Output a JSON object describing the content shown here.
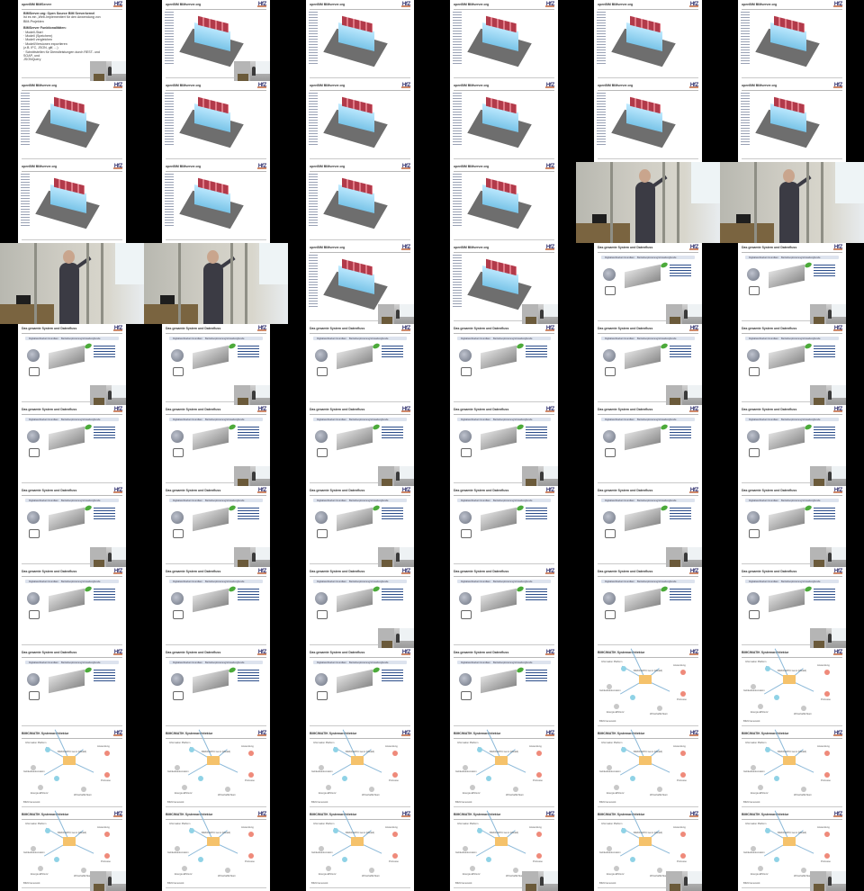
{
  "header": {
    "site": "openBIM BIMServer",
    "logo": "HfZ"
  },
  "headers": {
    "bimserver_org": "openBIM BIMserver.org",
    "gesamtsystem": "Das gesamte System und Datenfluss",
    "systemarchitektur": "BIMCIMATIK Systemarchitektur"
  },
  "intro_slide": {
    "lines": [
      {
        "text": "BIMServer.org: Open Source BIM Serverkernel",
        "bold": true
      },
      {
        "text": "Ist es ein „Web-Implementiert für den Anwendung von BIM-Projekten",
        "bold": false
      },
      {
        "text": "",
        "bold": false
      },
      {
        "text": "BIMServer Funktionalitäten:",
        "bold": true
      },
      {
        "text": "· Modell-Start",
        "bold": false
      },
      {
        "text": "· Modell (Speichern)",
        "bold": false
      },
      {
        "text": "· Modell vergleichen",
        "bold": false
      },
      {
        "text": "· Modell/Versionen exportieren",
        "bold": false
      },
      {
        "text": "  (z.B. IFC, JSON, glif, ...)",
        "bold": false
      },
      {
        "text": "· Schnittstellen für Dienstleistungen durch REST- und SOAP- und",
        "bold": false
      },
      {
        "text": "  JSONQuery",
        "bold": false
      }
    ]
  },
  "bar_labels": [
    "Digitalisiertbarkeit Grundlast",
    "Betriebsoptimierung/Verwaltung",
    "Kunde"
  ],
  "system_labels": {
    "center": "BIMCIMATIK Gen1 (Modell)",
    "left_top": "Information Platform",
    "left_mid": "Gebäudeautomation",
    "right_top": "Anwendung",
    "right_mid": "Prozesse",
    "bottom_left": "Energie-Effizienz",
    "bottom_mid": "Wirtschaftlichkeit",
    "legend": "BIM-Framework"
  },
  "tile_sequence": [
    "intro",
    "bim",
    "bim",
    "bim",
    "bim",
    "bim",
    "bim",
    "bim",
    "bim",
    "bim",
    "bim",
    "bim",
    "bim",
    "bim",
    "bim",
    "bim",
    "photo",
    "photo",
    "photo",
    "photo",
    "bim",
    "bim",
    "flow",
    "flow",
    "flow",
    "flow",
    "flow",
    "flow",
    "flow",
    "flow",
    "flow",
    "flow",
    "flow",
    "flow",
    "flow",
    "flow",
    "flow",
    "flow",
    "flow",
    "flow",
    "flow",
    "flow",
    "flow",
    "flow",
    "flow",
    "flow",
    "flow",
    "flow",
    "flow",
    "flow",
    "flow",
    "flow",
    "sys",
    "sys",
    "sys",
    "sys",
    "sys",
    "sys",
    "sys",
    "sys",
    "sys",
    "sys",
    "sys",
    "sys",
    "sys",
    "sys"
  ],
  "inset_tiles": [
    0,
    1,
    20,
    21,
    22,
    23,
    24,
    25,
    28,
    29,
    31,
    32,
    33,
    35,
    36,
    37,
    38,
    40,
    41,
    44,
    47,
    60,
    63,
    64,
    65
  ]
}
